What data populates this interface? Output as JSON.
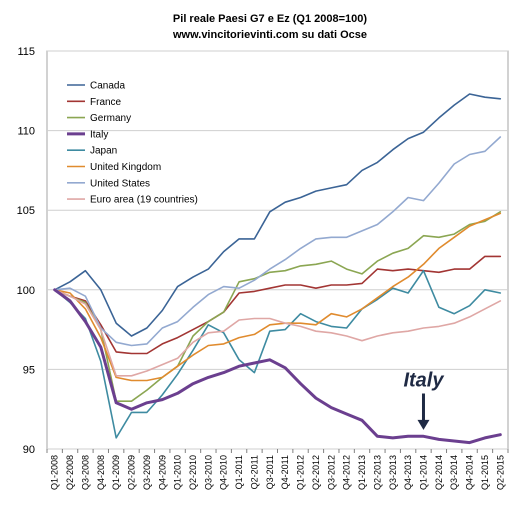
{
  "chart_data": {
    "type": "line",
    "title": "Pil reale Paesi G7 e Ez (Q1 2008=100)",
    "subtitle": "www.vincitorievinti.com su dati Ocse",
    "xlabel": "",
    "ylabel": "",
    "ylim": [
      90,
      115
    ],
    "yticks": [
      90,
      95,
      100,
      105,
      110,
      115
    ],
    "grid": true,
    "legend_position": "top-left",
    "categories": [
      "Q1-2008",
      "Q2-2008",
      "Q3-2008",
      "Q4-2008",
      "Q1-2009",
      "Q2-2009",
      "Q3-2009",
      "Q4-2009",
      "Q1-2010",
      "Q2-2010",
      "Q3-2010",
      "Q4-2010",
      "Q1-2011",
      "Q2-2011",
      "Q3-2011",
      "Q4-2011",
      "Q1-2012",
      "Q2-2012",
      "Q3-2012",
      "Q4-2012",
      "Q1-2013",
      "Q2-2013",
      "Q3-2013",
      "Q4-2013",
      "Q1-2014",
      "Q2-2014",
      "Q3-2014",
      "Q4-2014",
      "Q1-2015",
      "Q2-2015"
    ],
    "series": [
      {
        "name": "Canada",
        "color": "#3b6496",
        "width": 1.6,
        "values": [
          100,
          100.5,
          101.2,
          100,
          97.9,
          97.1,
          97.6,
          98.7,
          100.2,
          100.8,
          101.3,
          102.4,
          103.2,
          103.2,
          104.9,
          105.5,
          105.8,
          106.2,
          106.4,
          106.6,
          107.5,
          108,
          108.8,
          109.5,
          109.9,
          110.8,
          111.6,
          112.3,
          112.1,
          112
        ]
      },
      {
        "name": "France",
        "color": "#a23533",
        "width": 1.6,
        "values": [
          100,
          99.6,
          99.3,
          97.8,
          96.1,
          96,
          96,
          96.6,
          97,
          97.5,
          98,
          98.6,
          99.8,
          99.9,
          100.1,
          100.3,
          100.3,
          100.1,
          100.3,
          100.3,
          100.4,
          101.3,
          101.2,
          101.3,
          101.2,
          101.1,
          101.3,
          101.3,
          102.1,
          102.1
        ]
      },
      {
        "name": "Germany",
        "color": "#8ba652",
        "width": 1.6,
        "values": [
          100,
          99.6,
          99.2,
          97.5,
          93,
          93,
          93.7,
          94.5,
          95.2,
          97.1,
          98,
          98.6,
          100.5,
          100.7,
          101.1,
          101.2,
          101.5,
          101.6,
          101.8,
          101.3,
          101,
          101.8,
          102.3,
          102.6,
          103.4,
          103.3,
          103.5,
          104.1,
          104.3,
          104.9
        ]
      },
      {
        "name": "Italy",
        "color": "#6b3f8f",
        "width": 3,
        "values": [
          100,
          99.3,
          98,
          96.4,
          92.9,
          92.5,
          92.9,
          93.1,
          93.5,
          94.1,
          94.5,
          94.8,
          95.2,
          95.4,
          95.6,
          95.1,
          94.1,
          93.2,
          92.6,
          92.2,
          91.8,
          90.8,
          90.7,
          90.8,
          90.8,
          90.6,
          90.5,
          90.4,
          90.7,
          90.9
        ]
      },
      {
        "name": "Japan",
        "color": "#3e8ba1",
        "width": 1.6,
        "values": [
          100,
          99.2,
          98.2,
          95.5,
          90.7,
          92.3,
          92.3,
          93.4,
          94.7,
          96.2,
          97.8,
          97.3,
          95.6,
          94.8,
          97.4,
          97.5,
          98.5,
          98,
          97.7,
          97.6,
          98.8,
          99.4,
          100.1,
          99.8,
          101.2,
          98.9,
          98.5,
          99,
          100,
          99.8
        ]
      },
      {
        "name": "United Kingdom",
        "color": "#e08b2e",
        "width": 1.6,
        "values": [
          100,
          99.8,
          98.8,
          97,
          94.5,
          94.3,
          94.3,
          94.5,
          95.2,
          95.9,
          96.5,
          96.6,
          97,
          97.2,
          97.8,
          97.9,
          97.9,
          97.8,
          98.5,
          98.3,
          98.8,
          99.5,
          100.2,
          100.8,
          101.6,
          102.6,
          103.3,
          104,
          104.4,
          104.8
        ]
      },
      {
        "name": "United States",
        "color": "#93a9d0",
        "width": 1.6,
        "values": [
          100,
          100.1,
          99.6,
          97.6,
          96.7,
          96.5,
          96.6,
          97.6,
          98,
          98.9,
          99.7,
          100.2,
          100.1,
          100.6,
          101.3,
          101.9,
          102.6,
          103.2,
          103.3,
          103.3,
          103.7,
          104.1,
          104.9,
          105.8,
          105.6,
          106.7,
          107.9,
          108.5,
          108.7,
          109.6
        ]
      },
      {
        "name": "Euro area (19 countries)",
        "color": "#dfa7a5",
        "width": 1.6,
        "values": [
          100,
          99.6,
          99.1,
          97.5,
          94.6,
          94.6,
          94.9,
          95.3,
          95.7,
          96.7,
          97.3,
          97.4,
          98.1,
          98.2,
          98.2,
          97.9,
          97.7,
          97.4,
          97.3,
          97.1,
          96.8,
          97.1,
          97.3,
          97.4,
          97.6,
          97.7,
          97.9,
          98.3,
          98.8,
          99.3
        ]
      }
    ],
    "annotations": [
      {
        "text": "Italy",
        "x": "Q1-2014",
        "y": 93.8,
        "arrow_to_y": 91.2
      }
    ]
  }
}
